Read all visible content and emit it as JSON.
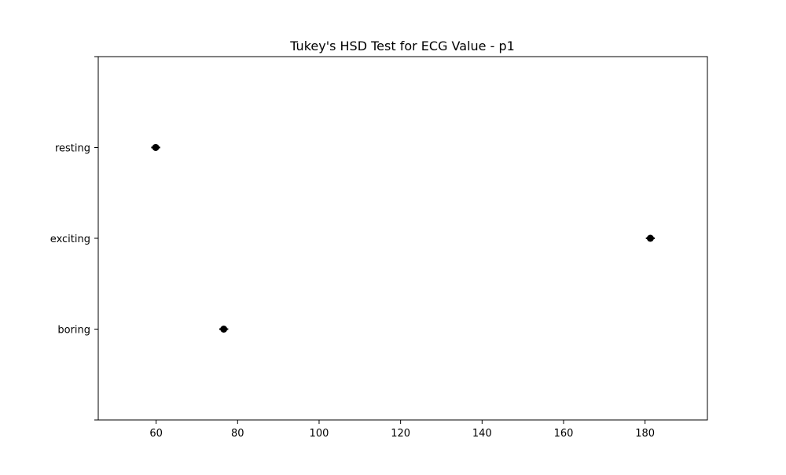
{
  "chart_data": {
    "type": "scatter",
    "title": "Tukey's HSD Test for ECG Value - p1",
    "xlabel": "",
    "ylabel": "",
    "xlim": [
      45.8,
      195.3
    ],
    "x_ticks": [
      60,
      80,
      100,
      120,
      140,
      160,
      180
    ],
    "groups": [
      "boring",
      "exciting",
      "resting"
    ],
    "points": [
      {
        "group": "resting",
        "mean": 59.9,
        "ci": [
          58.8,
          61.0
        ]
      },
      {
        "group": "exciting",
        "mean": 181.3,
        "ci": [
          180.2,
          182.4
        ]
      },
      {
        "group": "boring",
        "mean": 76.6,
        "ci": [
          75.5,
          77.7
        ]
      }
    ],
    "grid": false,
    "legend": "none",
    "marker_color": "#000000"
  }
}
